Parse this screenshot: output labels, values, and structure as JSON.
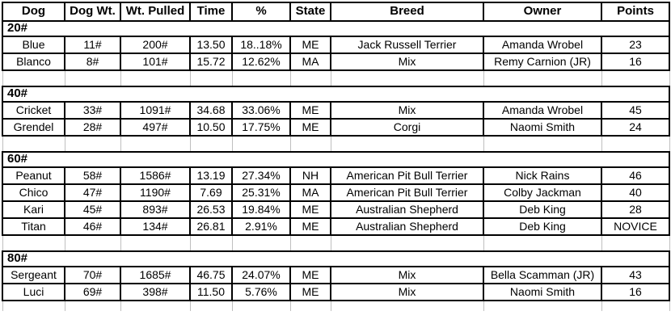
{
  "table": {
    "columns": [
      "Dog",
      "Dog Wt.",
      "Wt. Pulled",
      "Time",
      "%",
      "State",
      "Breed",
      "Owner",
      "Points"
    ],
    "rows": [
      {
        "type": "section",
        "label": "20#"
      },
      {
        "type": "data",
        "cells": [
          "Blue",
          "11#",
          "200#",
          "13.50",
          "18..18%",
          "ME",
          "Jack Russell Terrier",
          "Amanda Wrobel",
          "23"
        ]
      },
      {
        "type": "data",
        "cells": [
          "Blanco",
          "8#",
          "101#",
          "15.72",
          "12.62%",
          "MA",
          "Mix",
          "Remy Carnion (JR)",
          "16"
        ]
      },
      {
        "type": "spacer"
      },
      {
        "type": "section",
        "label": "40#"
      },
      {
        "type": "data",
        "cells": [
          "Cricket",
          "33#",
          "1091#",
          "34.68",
          "33.06%",
          "ME",
          "Mix",
          "Amanda Wrobel",
          "45"
        ]
      },
      {
        "type": "data",
        "cells": [
          "Grendel",
          "28#",
          "497#",
          "10.50",
          "17.75%",
          "ME",
          "Corgi",
          "Naomi Smith",
          "24"
        ]
      },
      {
        "type": "spacer"
      },
      {
        "type": "section",
        "label": "60#"
      },
      {
        "type": "data",
        "cells": [
          "Peanut",
          "58#",
          "1586#",
          "13.19",
          "27.34%",
          "NH",
          "American Pit Bull Terrier",
          "Nick Rains",
          "46"
        ]
      },
      {
        "type": "data",
        "cells": [
          "Chico",
          "47#",
          "1190#",
          "7.69",
          "25.31%",
          "MA",
          "American Pit Bull Terrier",
          "Colby Jackman",
          "40"
        ]
      },
      {
        "type": "data",
        "cells": [
          "Kari",
          "45#",
          "893#",
          "26.53",
          "19.84%",
          "ME",
          "Australian Shepherd",
          "Deb King",
          "28"
        ]
      },
      {
        "type": "data",
        "cells": [
          "Titan",
          "46#",
          "134#",
          "26.81",
          "2.91%",
          "ME",
          "Australian Shepherd",
          "Deb King",
          "NOVICE"
        ]
      },
      {
        "type": "spacer"
      },
      {
        "type": "section",
        "label": "80#"
      },
      {
        "type": "data",
        "cells": [
          "Sergeant",
          "70#",
          "1685#",
          "46.75",
          "24.07%",
          "ME",
          "Mix",
          "Bella Scamman (JR)",
          "43"
        ]
      },
      {
        "type": "data",
        "cells": [
          "Luci",
          "69#",
          "398#",
          "11.50",
          "5.76%",
          "ME",
          "Mix",
          "Naomi Smith",
          "16"
        ]
      },
      {
        "type": "spacer_bottom"
      }
    ],
    "colors": {
      "border": "#000000",
      "gridline": "#bfbfbf",
      "background": "#ffffff",
      "text": "#000000"
    }
  }
}
